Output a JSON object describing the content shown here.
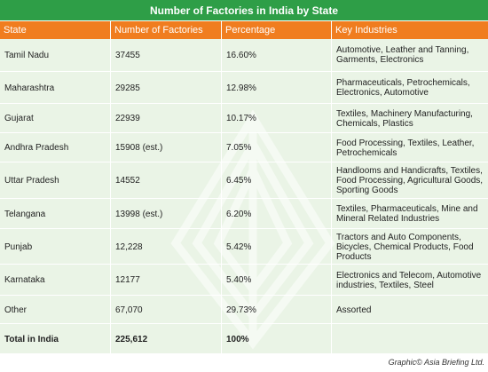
{
  "title": "Number of Factories in India by State",
  "headers": [
    "State",
    "Number of Factories",
    "Percentage",
    "Key Industries"
  ],
  "rows": [
    [
      "Tamil Nadu",
      "37455",
      "16.60%",
      "Automotive, Leather and Tanning, Garments, Electronics"
    ],
    [
      "Maharashtra",
      "29285",
      "12.98%",
      "Pharmaceuticals, Petrochemicals, Electronics, Automotive"
    ],
    [
      "Gujarat",
      "22939",
      "10.17%",
      "Textiles, Machinery Manufacturing, Chemicals, Plastics"
    ],
    [
      "Andhra Pradesh",
      "15908 (est.)",
      "7.05%",
      "Food Processing, Textiles, Leather, Petrochemicals"
    ],
    [
      "Uttar Pradesh",
      "14552",
      "6.45%",
      "Handlooms and Handicrafts, Textiles, Food Processing, Agricultural Goods, Sporting Goods"
    ],
    [
      "Telangana",
      "13998 (est.)",
      "6.20%",
      "Textiles, Pharmaceuticals, Mine and Mineral Related Industries"
    ],
    [
      "Punjab",
      "12,228",
      "5.42%",
      "Tractors and Auto Components, Bicycles, Chemical Products, Food Products"
    ],
    [
      "Karnataka",
      "12177",
      "5.40%",
      "Electronics and Telecom, Automotive industries, Textiles, Steel"
    ],
    [
      "Other",
      "67,070",
      "29.73%",
      "Assorted"
    ]
  ],
  "total": [
    "Total in India",
    "225,612",
    "100%",
    ""
  ],
  "credit": "Graphic© Asia Briefing Ltd.",
  "colors": {
    "title_bg": "#2e9e47",
    "header_bg": "#f07d1f",
    "body_bg": "#eaf4e6"
  },
  "watermark_icon": "asia-briefing-logo-watermark"
}
